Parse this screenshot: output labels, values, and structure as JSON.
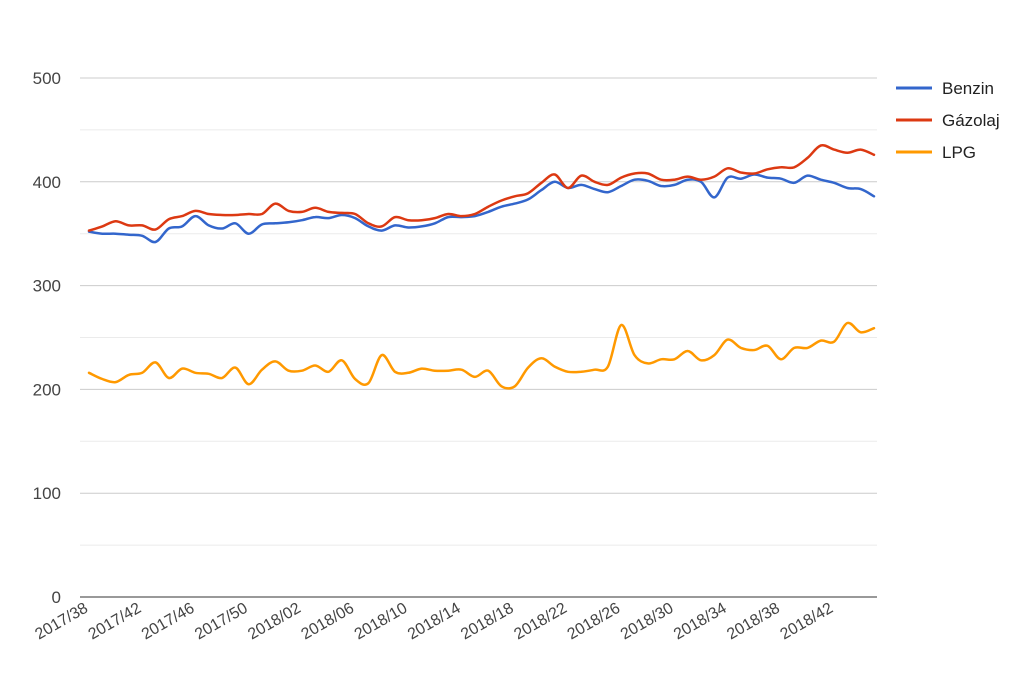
{
  "chart_data": {
    "type": "line",
    "title": "",
    "xlabel": "",
    "ylabel": "",
    "ylim": [
      0,
      500
    ],
    "yticks": [
      0,
      100,
      200,
      300,
      400,
      500
    ],
    "grid": "on",
    "legend_position": "right",
    "x_tick_labels": [
      "2017/38",
      "2017/42",
      "2017/46",
      "2017/50",
      "2018/02",
      "2018/06",
      "2018/10",
      "2018/14",
      "2018/18",
      "2018/22",
      "2018/26",
      "2018/30",
      "2018/34",
      "2018/38",
      "2018/42"
    ],
    "series": [
      {
        "name": "Benzin",
        "color": "#3366cc",
        "values": [
          352,
          350,
          350,
          349,
          348,
          342,
          355,
          357,
          367,
          358,
          355,
          360,
          350,
          359,
          360,
          361,
          363,
          366,
          365,
          368,
          365,
          357,
          353,
          358,
          356,
          357,
          360,
          366,
          366,
          367,
          371,
          376,
          379,
          383,
          392,
          400,
          394,
          397,
          393,
          390,
          396,
          402,
          401,
          396,
          397,
          402,
          400,
          385,
          404,
          403,
          407,
          404,
          403,
          399,
          406,
          402,
          399,
          394,
          393,
          386
        ]
      },
      {
        "name": "Gázolaj",
        "color": "#dc3912",
        "values": [
          353,
          357,
          362,
          358,
          358,
          354,
          364,
          367,
          372,
          369,
          368,
          368,
          369,
          369,
          379,
          372,
          371,
          375,
          371,
          370,
          369,
          360,
          357,
          366,
          363,
          363,
          365,
          369,
          367,
          369,
          376,
          382,
          386,
          389,
          399,
          407,
          394,
          406,
          400,
          397,
          404,
          408,
          408,
          402,
          402,
          405,
          402,
          405,
          413,
          409,
          408,
          412,
          414,
          414,
          423,
          435,
          431,
          428,
          431,
          426
        ]
      },
      {
        "name": "LPG",
        "color": "#ff9900",
        "values": [
          216,
          210,
          207,
          214,
          216,
          226,
          211,
          220,
          216,
          215,
          211,
          221,
          205,
          219,
          227,
          218,
          218,
          223,
          217,
          228,
          210,
          206,
          233,
          217,
          216,
          220,
          218,
          218,
          219,
          212,
          218,
          203,
          203,
          221,
          230,
          222,
          217,
          217,
          219,
          222,
          262,
          233,
          225,
          229,
          229,
          237,
          228,
          233,
          248,
          240,
          238,
          242,
          229,
          240,
          240,
          247,
          246,
          264,
          255,
          259
        ]
      }
    ]
  }
}
